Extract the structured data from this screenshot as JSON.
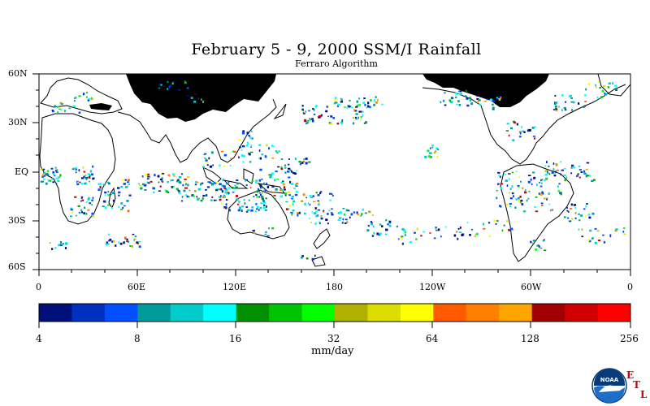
{
  "title": "February 5 - 9, 2000 SSM/I Rainfall",
  "subtitle": "Ferraro Algorithm",
  "lat_labels": [
    "60N",
    "30N",
    "EQ",
    "30S",
    "60S"
  ],
  "lon_labels": [
    "0",
    "60E",
    "120E",
    "180",
    "120W",
    "60W",
    "0"
  ],
  "colorbar": {
    "labels": [
      "4",
      "8",
      "16",
      "32",
      "64",
      "128",
      "256"
    ],
    "units": "mm/day",
    "colors": [
      "#00107a",
      "#0030c0",
      "#0050ff",
      "#009a9a",
      "#00cccc",
      "#00ffff",
      "#008f00",
      "#00c400",
      "#00ff00",
      "#b0b000",
      "#dcdc00",
      "#ffff00",
      "#ff5a00",
      "#ff8000",
      "#ffa500",
      "#a00000",
      "#d00000",
      "#ff0000"
    ]
  },
  "logo": {
    "name": "NOAA",
    "etl_letters": [
      "E",
      "T",
      "L"
    ]
  },
  "map_style": {
    "land_outline": "#000000",
    "ice_mask": "#000000",
    "background": "#ffffff"
  }
}
